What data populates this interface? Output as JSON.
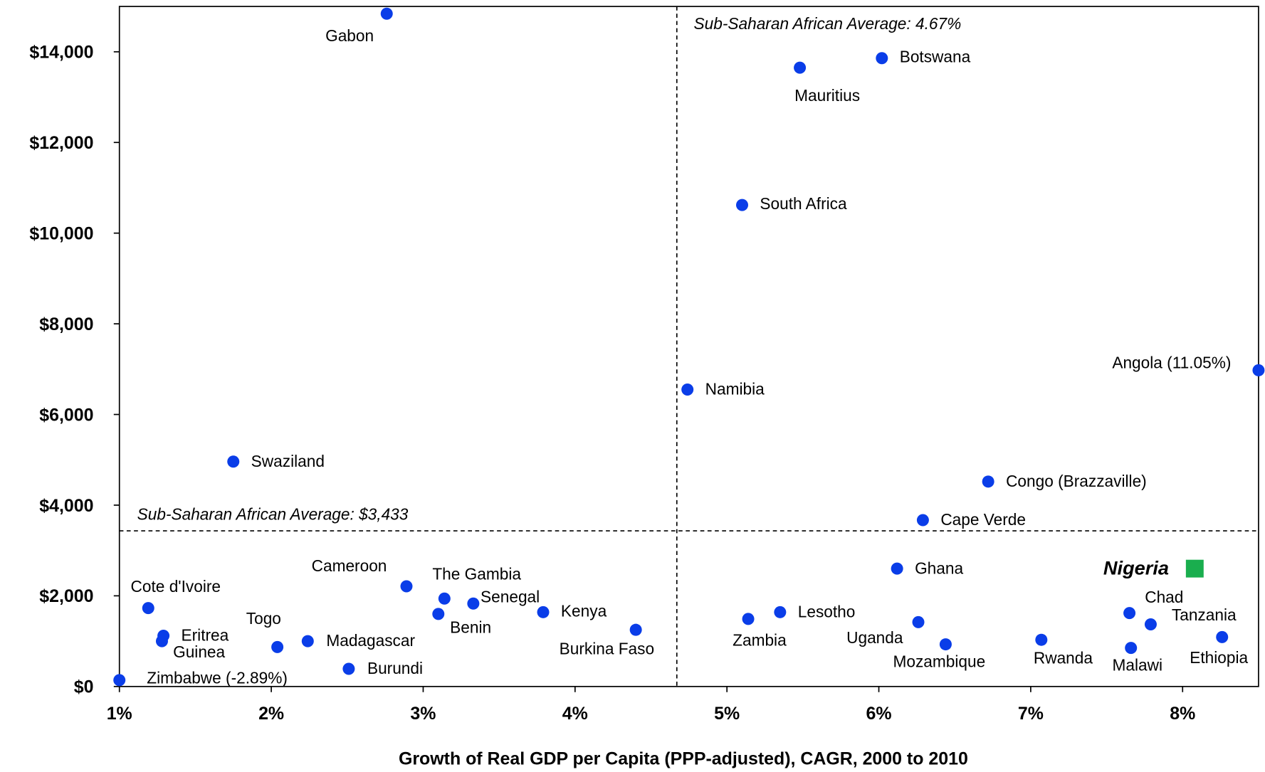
{
  "chart_data": {
    "type": "scatter",
    "x_label": "Growth of Real GDP per Capita (PPP-adjusted),  CAGR, 2000 to 2010",
    "xlim": [
      1,
      8.5
    ],
    "ylim": [
      0,
      15000
    ],
    "xticks": [
      {
        "value": 1,
        "label": "1%"
      },
      {
        "value": 2,
        "label": "2%"
      },
      {
        "value": 3,
        "label": "3%"
      },
      {
        "value": 4,
        "label": "4%"
      },
      {
        "value": 5,
        "label": "5%"
      },
      {
        "value": 6,
        "label": "6%"
      },
      {
        "value": 7,
        "label": "7%"
      },
      {
        "value": 8,
        "label": "8%"
      }
    ],
    "yticks": [
      {
        "value": 0,
        "label": "$0"
      },
      {
        "value": 2000,
        "label": "$2,000"
      },
      {
        "value": 4000,
        "label": "$4,000"
      },
      {
        "value": 6000,
        "label": "$6,000"
      },
      {
        "value": 8000,
        "label": "$8,000"
      },
      {
        "value": 10000,
        "label": "$10,000"
      },
      {
        "value": 12000,
        "label": "$12,000"
      },
      {
        "value": 14000,
        "label": "$14,000"
      }
    ],
    "grid": false,
    "reference_lines": [
      {
        "axis": "x",
        "value": 4.67,
        "label": "Sub-Saharan African Average: 4.67%"
      },
      {
        "axis": "y",
        "value": 3433,
        "label": "Sub-Saharan African Average: $3,433"
      }
    ],
    "series": [
      {
        "color": "#0a3de8",
        "marker": "circle",
        "labels": [
          "Gabon",
          "Mauritius",
          "Botswana",
          "South Africa",
          "Namibia",
          "Angola (11.05%)",
          "Swaziland",
          "Congo (Brazzaville)",
          "Cape Verde",
          "Ghana",
          "Cote d'Ivoire",
          "Eritrea",
          "Guinea",
          "Zimbabwe (-2.89%)",
          "Togo",
          "Madagascar",
          "Burundi",
          "Cameroon",
          "The Gambia",
          "Senegal",
          "Benin",
          "Kenya",
          "Burkina Faso",
          "Zambia",
          "Lesotho",
          "Uganda",
          "Mozambique",
          "Rwanda",
          "Chad",
          "Tanzania",
          "Malawi",
          "Ethiopia"
        ],
        "x": [
          2.76,
          5.48,
          6.02,
          5.1,
          4.74,
          8.5,
          1.75,
          6.72,
          6.29,
          6.12,
          1.19,
          1.29,
          1.28,
          1.0,
          2.04,
          2.24,
          2.51,
          2.89,
          3.14,
          3.33,
          3.1,
          3.79,
          4.4,
          5.14,
          5.35,
          6.26,
          6.44,
          7.07,
          7.65,
          7.79,
          7.66,
          8.26
        ],
        "values": [
          14840,
          13650,
          13860,
          10620,
          6550,
          6975,
          4960,
          4520,
          3670,
          2600,
          1730,
          1120,
          1000,
          140,
          870,
          1000,
          390,
          2210,
          1940,
          1830,
          1600,
          1640,
          1250,
          1490,
          1640,
          1420,
          930,
          1030,
          1620,
          1370,
          850,
          1090
        ]
      },
      {
        "color": "#1aae4e",
        "marker": "square",
        "labels": [
          "Nigeria"
        ],
        "x": [
          8.08
        ],
        "values": [
          2600
        ]
      }
    ]
  }
}
